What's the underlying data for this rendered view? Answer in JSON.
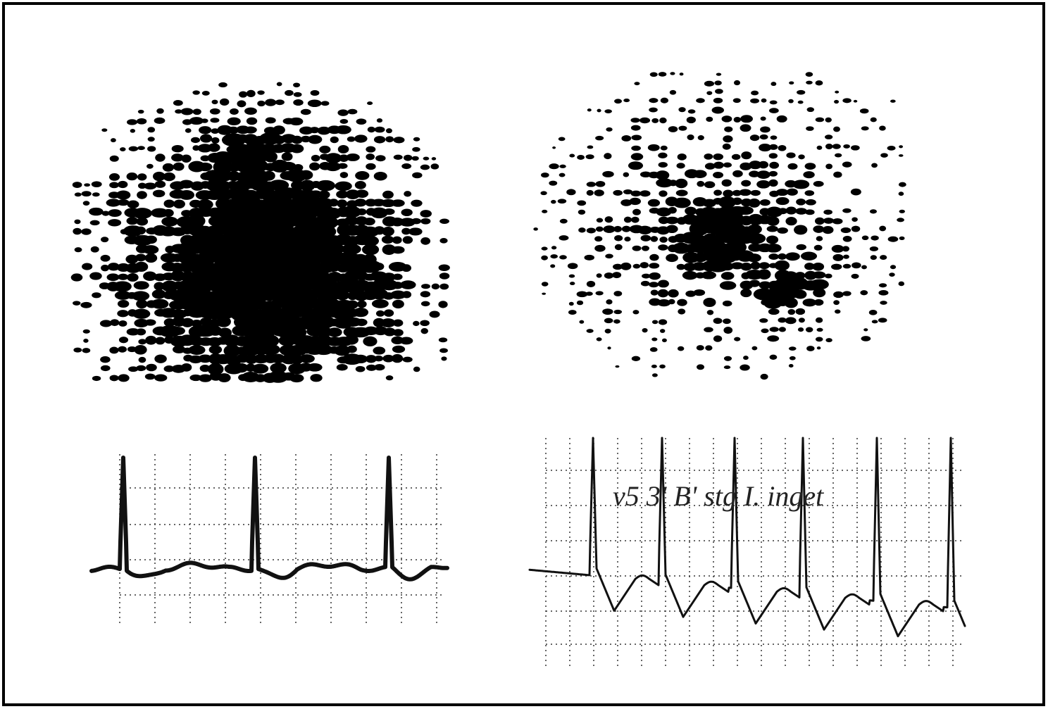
{
  "annotation": "v5 3' B' stg I. inget"
}
